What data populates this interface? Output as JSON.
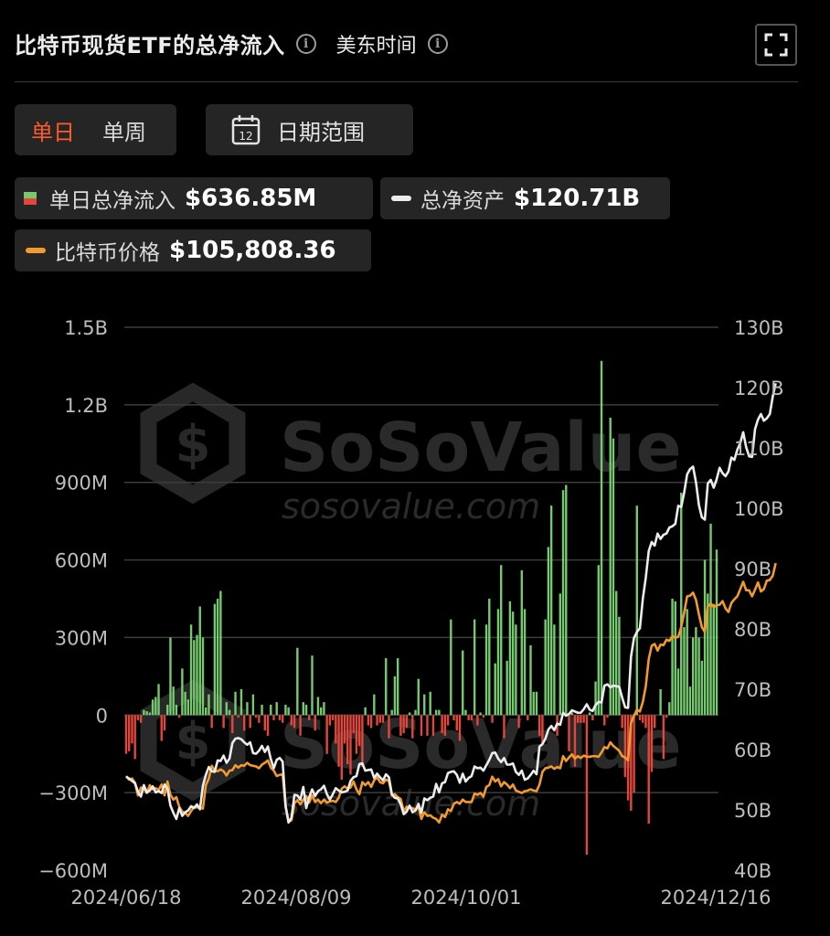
{
  "header": {
    "title": "比特币现货ETF的总净流入",
    "timezone": "美东时间"
  },
  "toggle": {
    "daily": "单日",
    "weekly": "单周"
  },
  "date_range": {
    "label": "日期范围",
    "icon_day": "12"
  },
  "legend": {
    "inflow_label": "单日总净流入",
    "inflow_value": "$636.85M",
    "assets_label": "总净资产",
    "assets_value": "$120.71B",
    "price_label": "比特币价格",
    "price_value": "$105,808.36"
  },
  "colors": {
    "background": "#000000",
    "positive": "#76c96f",
    "negative": "#e2473b",
    "net_assets_line": "#ececec",
    "btc_price_line": "#f39a2c",
    "accent": "#ff5a2a"
  },
  "watermark": {
    "brand": "SoSoValue",
    "url": "sosovalue.com"
  },
  "chart_data": {
    "type": "bar",
    "title": "",
    "x_tick_labels": [
      "2024/06/18",
      "2024/08/09",
      "2024/10/01",
      "2024/12/16"
    ],
    "left_axis": {
      "ticks": [
        "1.5B",
        "1.2B",
        "900M",
        "600M",
        "300M",
        "0",
        "−300M",
        "−600M"
      ],
      "ylim": [
        -600,
        1500
      ],
      "unit": "M USD"
    },
    "right_axis": {
      "ticks": [
        "130B",
        "120B",
        "110B",
        "100B",
        "90B",
        "80B",
        "70B",
        "60B",
        "50B",
        "40B"
      ],
      "ylim": [
        40,
        130
      ],
      "unit": "B USD"
    },
    "series": [
      {
        "name": "单日总净流入",
        "type": "bar",
        "axis": "left",
        "values": [
          -150,
          -140,
          -110,
          -170,
          -20,
          -30,
          20,
          15,
          10,
          60,
          70,
          120,
          -100,
          -60,
          40,
          300,
          110,
          40,
          -10,
          180,
          90,
          60,
          350,
          290,
          310,
          420,
          300,
          30,
          80,
          -50,
          430,
          450,
          480,
          -50,
          50,
          20,
          -70,
          90,
          -10,
          100,
          -60,
          50,
          -50,
          80,
          -10,
          -30,
          40,
          -60,
          -80,
          40,
          -20,
          50,
          -20,
          -30,
          40,
          30,
          -40,
          -50,
          260,
          -80,
          50,
          40,
          -20,
          230,
          -60,
          70,
          30,
          50,
          -150,
          -40,
          -20,
          -110,
          -200,
          -250,
          -110,
          -190,
          -230,
          -70,
          -150,
          -120,
          -200,
          30,
          -40,
          -50,
          80,
          -40,
          -30,
          -30,
          220,
          -90,
          20,
          150,
          220,
          -80,
          -70,
          -50,
          10,
          -90,
          20,
          140,
          -80,
          80,
          -80,
          90,
          -80,
          20,
          20,
          -70,
          -80,
          -40,
          370,
          -20,
          -60,
          -100,
          250,
          20,
          -20,
          -20,
          370,
          -40,
          10,
          -10,
          350,
          450,
          -30,
          200,
          410,
          580,
          -90,
          210,
          440,
          400,
          350,
          -50,
          560,
          410,
          -20,
          270,
          90,
          90,
          -80,
          -110,
          370,
          650,
          810,
          350,
          -80,
          470,
          870,
          890,
          -140,
          10,
          -200,
          -30,
          -30,
          -30,
          -540,
          10,
          -20,
          130,
          580,
          1370,
          -40,
          -10,
          1150,
          1070,
          480,
          380,
          -50,
          -240,
          -330,
          -370,
          -300,
          810,
          -20,
          -30,
          -50,
          -420,
          -220,
          -50,
          0,
          100,
          -170,
          -10,
          50,
          450,
          440,
          180,
          860,
          340,
          410,
          110,
          300,
          340,
          300,
          210,
          600,
          470,
          740,
          430,
          640
        ]
      },
      {
        "name": "总净资产",
        "type": "line",
        "axis": "right",
        "values": [
          55.5,
          55.2,
          54.8,
          54.4,
          53.0,
          52.2,
          54.1,
          52.9,
          53.2,
          53.9,
          52.9,
          53.1,
          52.8,
          54.2,
          53.5,
          50.7,
          49.5,
          48.5,
          50.3,
          49.0,
          49.6,
          49.9,
          50.6,
          50.3,
          50.9,
          50.1,
          54.0,
          55.8,
          57.1,
          56.4,
          56.3,
          58.2,
          58.1,
          59.0,
          57.8,
          58.5,
          61.1,
          61.8,
          61.9,
          61.7,
          61.2,
          60.8,
          61.2,
          59.4,
          59.3,
          59.8,
          60.6,
          59.6,
          60.5,
          58.4,
          56.9,
          58.3,
          58.6,
          58.0,
          50.7,
          47.9,
          48.7,
          52.5,
          52.4,
          51.7,
          53.8,
          50.3,
          52.1,
          53.4,
          52.3,
          53.1,
          53.4,
          54.0,
          52.6,
          51.7,
          52.6,
          53.6,
          53.2,
          52.9,
          53.0,
          53.2,
          54.8,
          55.4,
          55.6,
          57.6,
          57.7,
          56.5,
          56.6,
          56.7,
          55.3,
          56.0,
          55.4,
          54.9,
          55.9,
          55.4,
          52.6,
          52.0,
          51.9,
          50.9,
          49.3,
          49.7,
          50.7,
          49.6,
          49.9,
          51.0,
          49.5,
          51.9,
          51.6,
          52.0,
          52.2,
          54.3,
          52.9,
          54.4,
          54.6,
          56.1,
          56.3,
          56.4,
          55.8,
          54.5,
          56.0,
          54.7,
          55.3,
          55.6,
          57.2,
          56.9,
          57.0,
          56.5,
          57.4,
          58.3,
          59.4,
          59.5,
          58.5,
          57.9,
          58.6,
          57.5,
          57.5,
          57.7,
          56.3,
          55.8,
          56.5,
          55.0,
          55.2,
          55.8,
          56.5,
          55.9,
          60.5,
          60.9,
          61.8,
          63.3,
          63.9,
          63.2,
          64.3,
          64.1,
          66.1,
          65.6,
          65.9,
          66.5,
          66.3,
          66.1,
          66.1,
          66.7,
          67.5,
          66.6,
          66.4,
          67.4,
          67.9,
          67.8,
          70.6,
          70.8,
          70.3,
          70.6,
          70.5,
          70.4,
          68.6,
          67.0,
          66.9,
          75.4,
          78.5,
          79.5,
          80.1,
          85.0,
          88.5,
          92.9,
          94.4,
          93.8,
          95.8,
          94.9,
          95.6,
          95.8,
          96.8,
          97.0,
          97.4,
          100.4,
          100.2,
          102.6,
          105.6,
          106.5,
          106.9,
          104.3,
          100.5,
          98.5,
          98.1,
          104.1,
          104.7,
          103.4,
          104.8,
          106.7,
          105.8,
          105.3,
          106.1,
          108.4,
          108.0,
          109.7,
          110.8,
          112.6,
          110.1,
          108.6,
          108.5,
          113.1,
          114.7,
          115.6,
          114.5,
          114.9,
          115.6,
          118.5,
          120.7
        ]
      },
      {
        "name": "比特币价格",
        "type": "line",
        "axis": "right",
        "values": [
          55.6,
          55.0,
          55.2,
          54.5,
          52.4,
          53.7,
          53.5,
          52.8,
          54.1,
          53.4,
          53.6,
          53.3,
          54.2,
          52.4,
          54.7,
          52.5,
          51.7,
          52.1,
          50.5,
          49.7,
          49.5,
          49.0,
          49.8,
          50.5,
          50.4,
          50.4,
          50.2,
          54.1,
          55.2,
          57.3,
          56.5,
          56.4,
          56.7,
          56.4,
          55.7,
          56.5,
          56.6,
          57.4,
          57.0,
          57.4,
          57.3,
          57.8,
          57.4,
          57.3,
          57.2,
          56.9,
          57.5,
          57.8,
          58.2,
          57.0,
          56.5,
          55.6,
          55.8,
          55.9,
          50.5,
          48.0,
          48.3,
          51.1,
          51.6,
          50.9,
          51.7,
          52.3,
          51.2,
          52.4,
          51.3,
          51.7,
          51.1,
          51.7,
          51.2,
          51.4,
          51.5,
          51.3,
          52.0,
          53.5,
          53.9,
          53.5,
          53.7,
          54.7,
          53.4,
          52.6,
          54.6,
          54.1,
          54.6,
          53.8,
          54.9,
          55.4,
          54.6,
          54.4,
          55.0,
          54.8,
          52.4,
          52.6,
          52.1,
          51.8,
          49.8,
          50.5,
          50.4,
          50.3,
          50.0,
          50.4,
          48.5,
          49.6,
          49.0,
          49.1,
          48.7,
          48.5,
          47.9,
          49.2,
          48.8,
          50.1,
          49.8,
          51.0,
          51.3,
          51.0,
          51.7,
          51.3,
          51.3,
          51.3,
          52.7,
          52.5,
          52.8,
          52.2,
          53.8,
          54.1,
          55.5,
          54.7,
          55.1,
          53.9,
          54.6,
          54.2,
          53.6,
          54.2,
          53.2,
          53.0,
          52.8,
          53.1,
          53.2,
          53.4,
          53.2,
          53.1,
          54.2,
          56.3,
          56.9,
          57.0,
          57.2,
          56.8,
          57.1,
          56.9,
          58.9,
          58.1,
          58.7,
          59.2,
          58.5,
          58.9,
          58.6,
          59.0,
          58.8,
          58.8,
          58.9,
          58.9,
          58.8,
          59.5,
          60.4,
          60.2,
          61.2,
          60.6,
          60.2,
          59.8,
          58.9,
          58.7,
          58.2,
          64.4,
          65.6,
          66.6,
          66.3,
          67.9,
          70.5,
          75.0,
          77.2,
          77.5,
          76.4,
          77.4,
          77.3,
          78.2,
          78.0,
          78.8,
          78.5,
          78.7,
          80.3,
          82.7,
          85.4,
          85.5,
          86.0,
          84.8,
          82.4,
          80.3,
          79.5,
          83.7,
          84.2,
          83.6,
          83.9,
          84.0,
          84.6,
          83.4,
          82.8,
          84.3,
          84.9,
          85.4,
          86.6,
          87.8,
          86.4,
          86.4,
          85.4,
          86.5,
          87.7,
          86.2,
          86.6,
          88.0,
          88.1,
          88.8,
          90.9
        ]
      }
    ]
  }
}
